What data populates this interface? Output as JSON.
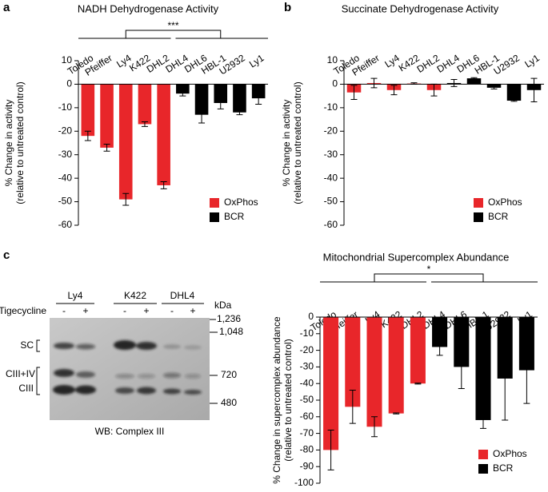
{
  "panel_labels": [
    "a",
    "b",
    "c"
  ],
  "chart_data": [
    {
      "type": "bar",
      "title": "NADH Dehydrogenase Activity",
      "ylabel": [
        "% Change in activity",
        "(relative to untreated control)"
      ],
      "categories": [
        "Toledo",
        "Pfeiffer",
        "Ly4",
        "K422",
        "DHL2",
        "DHL4",
        "DHL6",
        "HBL-1",
        "U2932",
        "Ly1"
      ],
      "series": [
        {
          "name": "OxPhos",
          "color": "#e8262a",
          "values": [
            -22,
            -27,
            -49,
            -17,
            -43,
            null,
            null,
            null,
            null,
            null
          ],
          "errors": [
            2,
            1.5,
            2.5,
            1,
            1.5,
            null,
            null,
            null,
            null,
            null
          ]
        },
        {
          "name": "BCR",
          "color": "#000000",
          "values": [
            null,
            null,
            null,
            null,
            null,
            -4,
            -13,
            -8,
            -12,
            -6
          ],
          "errors": [
            null,
            null,
            null,
            null,
            null,
            1,
            3.5,
            2.5,
            1,
            2.5
          ]
        }
      ],
      "ylim": [
        -60,
        10
      ],
      "yticks": [
        10,
        0,
        -10,
        -20,
        -30,
        -40,
        -50,
        -60
      ],
      "annotation": "***"
    },
    {
      "type": "bar",
      "title": "Succinate Dehydrogenase Activity",
      "ylabel": [
        "% Change in activity",
        "(relative to untreated control)"
      ],
      "categories": [
        "Toledo",
        "Pfeiffer",
        "Ly4",
        "K422",
        "DHL2",
        "DHL4",
        "DHL6",
        "HBL-1",
        "U2932",
        "Ly1"
      ],
      "series": [
        {
          "name": "OxPhos",
          "color": "#e8262a",
          "values": [
            -3.5,
            0.5,
            -2.5,
            0.3,
            -2.5,
            null,
            null,
            null,
            null,
            null
          ],
          "errors": [
            3,
            2,
            2,
            0.3,
            2.5,
            null,
            null,
            null,
            null,
            null
          ]
        },
        {
          "name": "BCR",
          "color": "#000000",
          "values": [
            null,
            null,
            null,
            null,
            null,
            0.5,
            2.5,
            -1.5,
            -7,
            -2.5
          ],
          "errors": [
            null,
            null,
            null,
            null,
            null,
            1.5,
            0.3,
            0.5,
            0.3,
            5
          ]
        }
      ],
      "ylim": [
        -60,
        10
      ],
      "yticks": [
        10,
        0,
        -10,
        -20,
        -30,
        -40,
        -50,
        -60
      ]
    },
    {
      "type": "bar",
      "title": "Mitochondrial Supercomplex Abundance",
      "ylabel": [
        "% Change in supercomplex abundance",
        "(relative to untreated control)"
      ],
      "categories": [
        "Toledo",
        "Pfeiffer",
        "Ly4",
        "K422",
        "DHL2",
        "DHL4",
        "DHL6",
        "HBL-1",
        "U2932",
        "Ly1"
      ],
      "series": [
        {
          "name": "OxPhos",
          "color": "#e8262a",
          "values": [
            -80,
            -54,
            -66,
            -58,
            -40,
            null,
            null,
            null,
            null,
            null
          ],
          "errors": [
            12,
            10,
            6,
            0.3,
            0.3,
            null,
            null,
            null,
            null,
            null
          ]
        },
        {
          "name": "BCR",
          "color": "#000000",
          "values": [
            null,
            null,
            null,
            null,
            null,
            -18,
            -30,
            -62,
            -37,
            -32
          ],
          "errors": [
            null,
            null,
            null,
            null,
            null,
            5,
            13,
            5,
            25,
            20
          ]
        }
      ],
      "ylim": [
        -100,
        0
      ],
      "yticks": [
        0,
        -10,
        -20,
        -30,
        -40,
        -50,
        -60,
        -70,
        -80,
        -90,
        -100
      ],
      "annotation": "*"
    }
  ],
  "blot": {
    "cell_lines": [
      {
        "label": "Ly4",
        "color": "#e8262a"
      },
      {
        "label": "K422",
        "color": "#e8262a"
      },
      {
        "label": "DHL4",
        "color": "#000000"
      }
    ],
    "treatment": "Tigecycline",
    "lanes": [
      "-",
      "+",
      "-",
      "+",
      "-",
      "+"
    ],
    "unit": "kDa",
    "markers": [
      "1,236",
      "1,048",
      "720",
      "480"
    ],
    "bands": [
      "SC",
      "CIII+IV",
      "CIII"
    ],
    "caption": "WB: Complex III"
  }
}
